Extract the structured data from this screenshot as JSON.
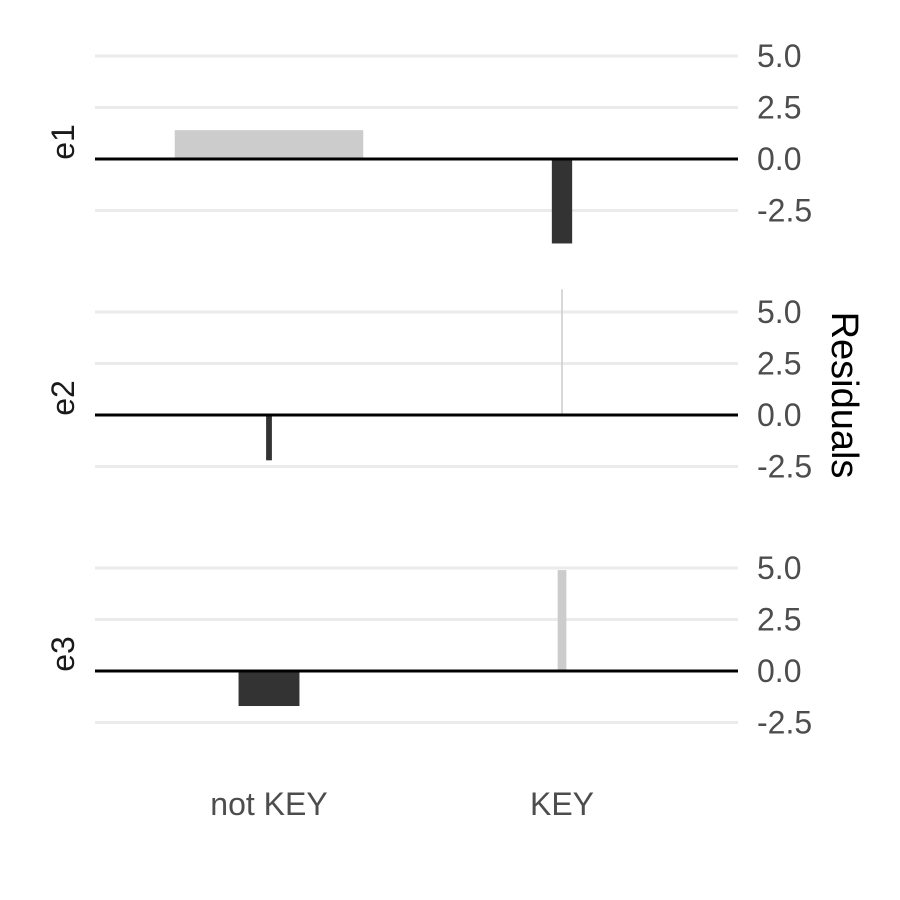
{
  "chart_data": {
    "type": "bar",
    "ylabel": "Residuals",
    "y_axis_position": "right",
    "ylim": [
      -3.5,
      6.1
    ],
    "yticks": [
      -2.5,
      0.0,
      2.5,
      5.0
    ],
    "ytick_labels": [
      "-2.5",
      "0.0",
      "2.5",
      "5.0"
    ],
    "categories": [
      "not KEY",
      "KEY"
    ],
    "grid": true,
    "colors": {
      "positive": "#cccccc",
      "negative": "#333333",
      "zero_line": "#000000",
      "grid": "#ebebeb"
    },
    "panels": [
      {
        "name": "e1",
        "bars": [
          {
            "category": "not KEY",
            "value": 1.4,
            "weight": 0.65
          },
          {
            "category": "KEY",
            "value": -4.1,
            "weight": 0.07
          }
        ]
      },
      {
        "name": "e2",
        "bars": [
          {
            "category": "not KEY",
            "value": -2.2,
            "weight": 0.02
          },
          {
            "category": "KEY",
            "value": 6.1,
            "weight": 0.005
          }
        ]
      },
      {
        "name": "e3",
        "bars": [
          {
            "category": "not KEY",
            "value": -1.7,
            "weight": 0.21
          },
          {
            "category": "KEY",
            "value": 4.9,
            "weight": 0.03
          }
        ]
      }
    ]
  }
}
